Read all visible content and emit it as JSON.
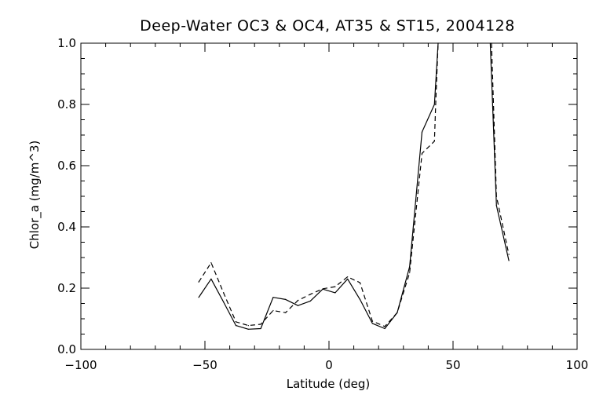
{
  "chart_data": {
    "type": "line",
    "title": "Deep-Water OC3 & OC4, AT35 & ST15, 2004128",
    "xlabel": "Latitude (deg)",
    "ylabel": "Chlor_a (mg/m^3)",
    "xlim": [
      -100,
      100
    ],
    "ylim": [
      0.0,
      1.0
    ],
    "x_ticks": [
      -100,
      -50,
      0,
      50,
      100
    ],
    "x_tick_labels": [
      "−100",
      "−50",
      "0",
      "50",
      "100"
    ],
    "y_ticks": [
      0.0,
      0.2,
      0.4,
      0.6,
      0.8,
      1.0
    ],
    "y_tick_labels": [
      "0.0",
      "0.2",
      "0.4",
      "0.6",
      "0.8",
      "1.0"
    ],
    "x_minor_step": 10,
    "y_minor_step": 0.05,
    "grid": false,
    "legend": "none",
    "colors": {
      "line": "#000000",
      "background": "#ffffff"
    },
    "series": [
      {
        "style": "solid",
        "segments": [
          [
            [
              -52.5,
              0.17
            ],
            [
              -47.5,
              0.23
            ],
            [
              -42.5,
              0.155
            ],
            [
              -37.5,
              0.078
            ],
            [
              -32.5,
              0.066
            ],
            [
              -27.5,
              0.068
            ],
            [
              -22.5,
              0.17
            ],
            [
              -17.5,
              0.163
            ],
            [
              -12.5,
              0.143
            ],
            [
              -7.5,
              0.158
            ],
            [
              -2.5,
              0.197
            ],
            [
              2.5,
              0.185
            ],
            [
              7.5,
              0.23
            ],
            [
              12.5,
              0.163
            ],
            [
              17.5,
              0.085
            ],
            [
              22.5,
              0.068
            ],
            [
              27.5,
              0.12
            ],
            [
              32.5,
              0.27
            ],
            [
              37.5,
              0.71
            ],
            [
              42.5,
              0.8
            ],
            [
              44.0,
              1.0
            ]
          ],
          [
            [
              65.0,
              1.0
            ],
            [
              67.5,
              0.47
            ],
            [
              72.5,
              0.29
            ]
          ]
        ]
      },
      {
        "style": "dashed",
        "segments": [
          [
            [
              -52.5,
              0.22
            ],
            [
              -47.5,
              0.283
            ],
            [
              -42.5,
              0.185
            ],
            [
              -37.5,
              0.09
            ],
            [
              -32.5,
              0.078
            ],
            [
              -27.5,
              0.082
            ],
            [
              -22.5,
              0.127
            ],
            [
              -17.5,
              0.12
            ],
            [
              -12.5,
              0.16
            ],
            [
              -7.5,
              0.18
            ],
            [
              -2.5,
              0.198
            ],
            [
              2.5,
              0.205
            ],
            [
              7.5,
              0.237
            ],
            [
              12.5,
              0.218
            ],
            [
              17.5,
              0.092
            ],
            [
              22.5,
              0.075
            ],
            [
              27.5,
              0.12
            ],
            [
              32.5,
              0.25
            ],
            [
              37.5,
              0.64
            ],
            [
              42.5,
              0.68
            ],
            [
              43.0,
              0.8
            ],
            [
              44.0,
              1.0
            ]
          ],
          [
            [
              65.5,
              1.0
            ],
            [
              67.5,
              0.5
            ],
            [
              72.5,
              0.31
            ]
          ]
        ]
      }
    ]
  }
}
